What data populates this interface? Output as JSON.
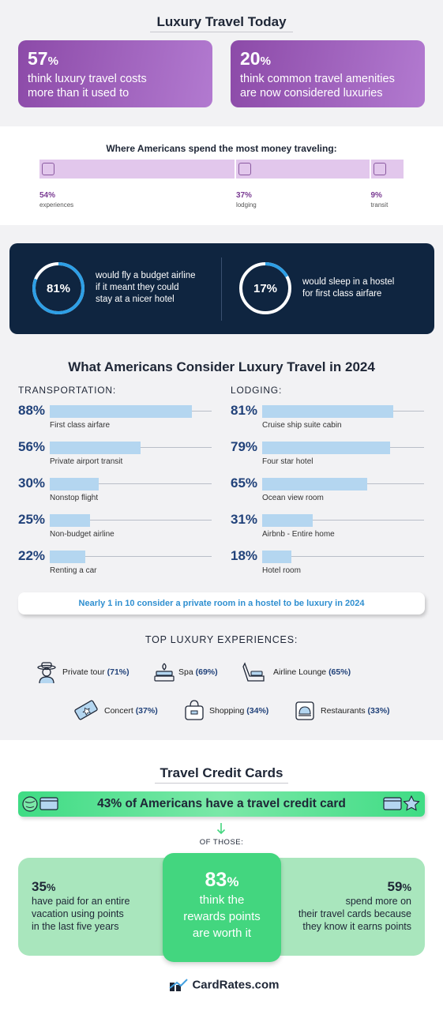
{
  "header": {
    "title": "Luxury Travel Today"
  },
  "stats_top": [
    {
      "value": "57",
      "unit": "%",
      "text_line1": "think luxury travel costs",
      "text_line2": "more than it used to"
    },
    {
      "value": "20",
      "unit": "%",
      "text_line1": "think common travel amenities",
      "text_line2": "are now considered luxuries"
    }
  ],
  "spend": {
    "title": "Where Americans spend the most money traveling:",
    "segments": [
      {
        "pct_label": "54%",
        "label": "experiences",
        "value": 54,
        "icon": "backpack-icon"
      },
      {
        "pct_label": "37%",
        "label": "lodging",
        "value": 37,
        "icon": "bed-icon"
      },
      {
        "pct_label": "9%",
        "label": "transit",
        "value": 9,
        "icon": "bus-icon"
      }
    ]
  },
  "rings": [
    {
      "label": "81%",
      "value": 81,
      "line1": "would fly a budget airline",
      "line2": "if it meant they could",
      "line3": "stay at a nicer hotel"
    },
    {
      "label": "17%",
      "value": 17,
      "line1": "would sleep in a hostel",
      "line2": "for first class airfare",
      "line3": ""
    }
  ],
  "chart_data": {
    "type": "bar",
    "title": "What Americans Consider Luxury Travel in 2024",
    "groups": [
      {
        "name": "TRANSPORTATION:",
        "categories": [
          "First class airfare",
          "Private airport transit",
          "Nonstop flight",
          "Non-budget airline",
          "Renting a car"
        ],
        "labels": [
          "88%",
          "56%",
          "30%",
          "25%",
          "22%"
        ],
        "values": [
          88,
          56,
          30,
          25,
          22
        ]
      },
      {
        "name": "LODGING:",
        "categories": [
          "Cruise ship suite cabin",
          "Four star hotel",
          "Ocean view room",
          "Airbnb - Entire home",
          "Hotel room"
        ],
        "labels": [
          "81%",
          "79%",
          "65%",
          "31%",
          "18%"
        ],
        "values": [
          81,
          79,
          65,
          31,
          18
        ]
      }
    ],
    "ylim": [
      0,
      100
    ],
    "bar_color": "#b4d6f0"
  },
  "callout": "Nearly 1 in 10 consider a private room in a hostel to be luxury in 2024",
  "experiences": {
    "title": "TOP LUXURY EXPERIENCES:",
    "items": [
      {
        "label": "Private tour",
        "pct": "(71%)",
        "icon": "tour-guide-icon"
      },
      {
        "label": "Spa",
        "pct": "(69%)",
        "icon": "spa-icon"
      },
      {
        "label": "Airline Lounge",
        "pct": "(65%)",
        "icon": "lounge-chair-icon"
      },
      {
        "label": "Concert",
        "pct": "(37%)",
        "icon": "ticket-icon"
      },
      {
        "label": "Shopping",
        "pct": "(34%)",
        "icon": "shopping-bag-icon"
      },
      {
        "label": "Restaurants",
        "pct": "(33%)",
        "icon": "cloche-icon"
      }
    ]
  },
  "credit": {
    "title": "Travel Credit Cards",
    "banner": "43% of Americans have a travel credit card",
    "of_those": "OF THOSE:",
    "left": {
      "value": "35",
      "unit": "%",
      "line1": "have paid for an entire",
      "line2": "vacation using points",
      "line3": "in the last five years"
    },
    "center": {
      "value": "83",
      "unit": "%",
      "line1": "think the",
      "line2": "rewards points",
      "line3": "are worth it"
    },
    "right": {
      "value": "59",
      "unit": "%",
      "line1": "spend more on",
      "line2": "their travel cards because",
      "line3": "they know it earns points"
    }
  },
  "footer": {
    "logo": "CardRates.com"
  },
  "colors": {
    "purple": "#8c4aa8",
    "navy": "#0f2540",
    "ring_blue": "#2d9fe6",
    "green": "#43d67f",
    "light_green": "#a9e6bd",
    "bar_blue": "#b4d6f0"
  }
}
